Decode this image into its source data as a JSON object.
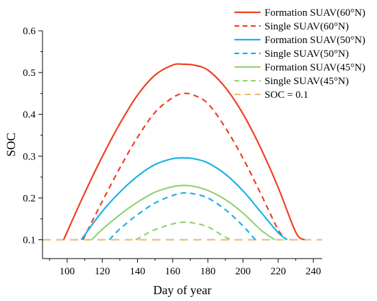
{
  "chart_data": {
    "type": "line",
    "title": "",
    "xlabel": "Day of year",
    "ylabel": "SOC",
    "xlim": [
      86,
      245
    ],
    "ylim": [
      0.055,
      0.6
    ],
    "xticks": [
      100,
      120,
      140,
      160,
      180,
      200,
      220,
      240
    ],
    "xtick_labels": [
      "100",
      "120",
      "140",
      "160",
      "180",
      "200",
      "220",
      "240"
    ],
    "yticks": [
      0.1,
      0.2,
      0.3,
      0.4,
      0.5,
      0.6
    ],
    "ytick_labels": [
      "0.1",
      "0.2",
      "0.3",
      "0.4",
      "0.5",
      "0.6"
    ],
    "grid": false,
    "legend_position": "top-right",
    "series": [
      {
        "name": "Formation SUAV(60°N)",
        "color": "#f03c1e",
        "style": "solid",
        "x": [
          98,
          110,
          120,
          130,
          140,
          150,
          160,
          166,
          172,
          180,
          190,
          200,
          210,
          220,
          230,
          235
        ],
        "y": [
          0.1,
          0.212,
          0.299,
          0.378,
          0.446,
          0.494,
          0.518,
          0.52,
          0.518,
          0.506,
          0.464,
          0.401,
          0.32,
          0.225,
          0.118,
          0.1
        ]
      },
      {
        "name": "Single SUAV(60°N)",
        "color": "#f03c1e",
        "style": "dashed",
        "x": [
          109,
          120,
          130,
          140,
          150,
          160,
          166,
          172,
          180,
          190,
          200,
          210,
          220,
          225
        ],
        "y": [
          0.1,
          0.192,
          0.272,
          0.345,
          0.405,
          0.44,
          0.45,
          0.446,
          0.426,
          0.368,
          0.295,
          0.211,
          0.124,
          0.1
        ]
      },
      {
        "name": "Formation SUAV(50°N)",
        "color": "#1ab0e6",
        "style": "solid",
        "x": [
          108,
          120,
          130,
          140,
          150,
          160,
          166,
          172,
          180,
          190,
          200,
          210,
          220,
          225
        ],
        "y": [
          0.1,
          0.168,
          0.214,
          0.252,
          0.28,
          0.294,
          0.296,
          0.294,
          0.284,
          0.257,
          0.217,
          0.167,
          0.117,
          0.1
        ]
      },
      {
        "name": "Single SUAV(50°N)",
        "color": "#1ab0e6",
        "style": "dashed",
        "x": [
          124,
          130,
          140,
          150,
          160,
          166,
          172,
          180,
          190,
          200,
          207
        ],
        "y": [
          0.1,
          0.126,
          0.16,
          0.188,
          0.206,
          0.212,
          0.21,
          0.2,
          0.172,
          0.133,
          0.1
        ]
      },
      {
        "name": "Formation SUAV(45°N)",
        "color": "#8fd36e",
        "style": "solid",
        "x": [
          114,
          120,
          130,
          140,
          150,
          160,
          166,
          172,
          180,
          190,
          200,
          210,
          218
        ],
        "y": [
          0.1,
          0.125,
          0.16,
          0.19,
          0.214,
          0.227,
          0.23,
          0.228,
          0.218,
          0.196,
          0.164,
          0.124,
          0.1
        ]
      },
      {
        "name": "Single SUAV(45°N)",
        "color": "#8fd36e",
        "style": "dashed",
        "x": [
          139,
          145,
          150,
          160,
          166,
          172,
          180,
          190,
          194
        ],
        "y": [
          0.1,
          0.114,
          0.124,
          0.138,
          0.142,
          0.14,
          0.131,
          0.106,
          0.1
        ]
      },
      {
        "name": "SOC = 0.1",
        "color": "#e8c07a",
        "style": "dashed",
        "x": [
          86,
          245
        ],
        "y": [
          0.1,
          0.1
        ]
      }
    ]
  }
}
